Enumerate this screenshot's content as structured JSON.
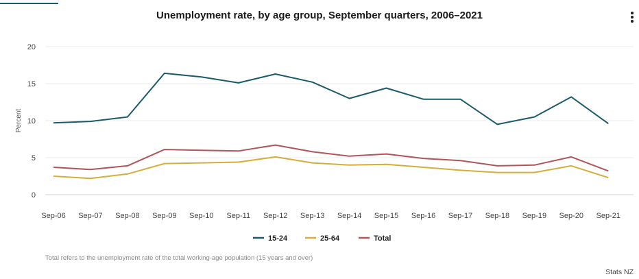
{
  "chart_data": {
    "type": "line",
    "title": "Unemployment rate, by age group, September quarters, 2006–2021",
    "ylabel": "Percent",
    "xlabel": "",
    "ylim": [
      0,
      20
    ],
    "yticks": [
      0,
      5,
      10,
      15,
      20
    ],
    "categories": [
      "Sep-06",
      "Sep-07",
      "Sep-08",
      "Sep-09",
      "Sep-10",
      "Sep-11",
      "Sep-12",
      "Sep-13",
      "Sep-14",
      "Sep-15",
      "Sep-16",
      "Sep-17",
      "Sep-18",
      "Sep-19",
      "Sep-20",
      "Sep-21"
    ],
    "series": [
      {
        "name": "15-24",
        "color": "#1c5a6b",
        "values": [
          9.7,
          9.9,
          10.5,
          16.4,
          15.9,
          15.1,
          16.3,
          15.2,
          13.0,
          14.4,
          12.9,
          12.9,
          9.5,
          10.5,
          13.2,
          9.6
        ]
      },
      {
        "name": "25-64",
        "color": "#d4ae3a",
        "values": [
          2.5,
          2.2,
          2.8,
          4.2,
          4.3,
          4.4,
          5.1,
          4.3,
          4.0,
          4.1,
          3.7,
          3.3,
          3.0,
          3.0,
          3.9,
          2.3
        ]
      },
      {
        "name": "Total",
        "color": "#b0555a",
        "values": [
          3.7,
          3.4,
          3.9,
          6.1,
          6.0,
          5.9,
          6.7,
          5.8,
          5.2,
          5.5,
          4.9,
          4.6,
          3.9,
          4.0,
          5.1,
          3.2
        ]
      }
    ],
    "grid": true,
    "legend": "bottom-center"
  },
  "footnote": "Total refers to the unemployment rate of the total working-age population (15 years and over)",
  "source": "Stats NZ"
}
